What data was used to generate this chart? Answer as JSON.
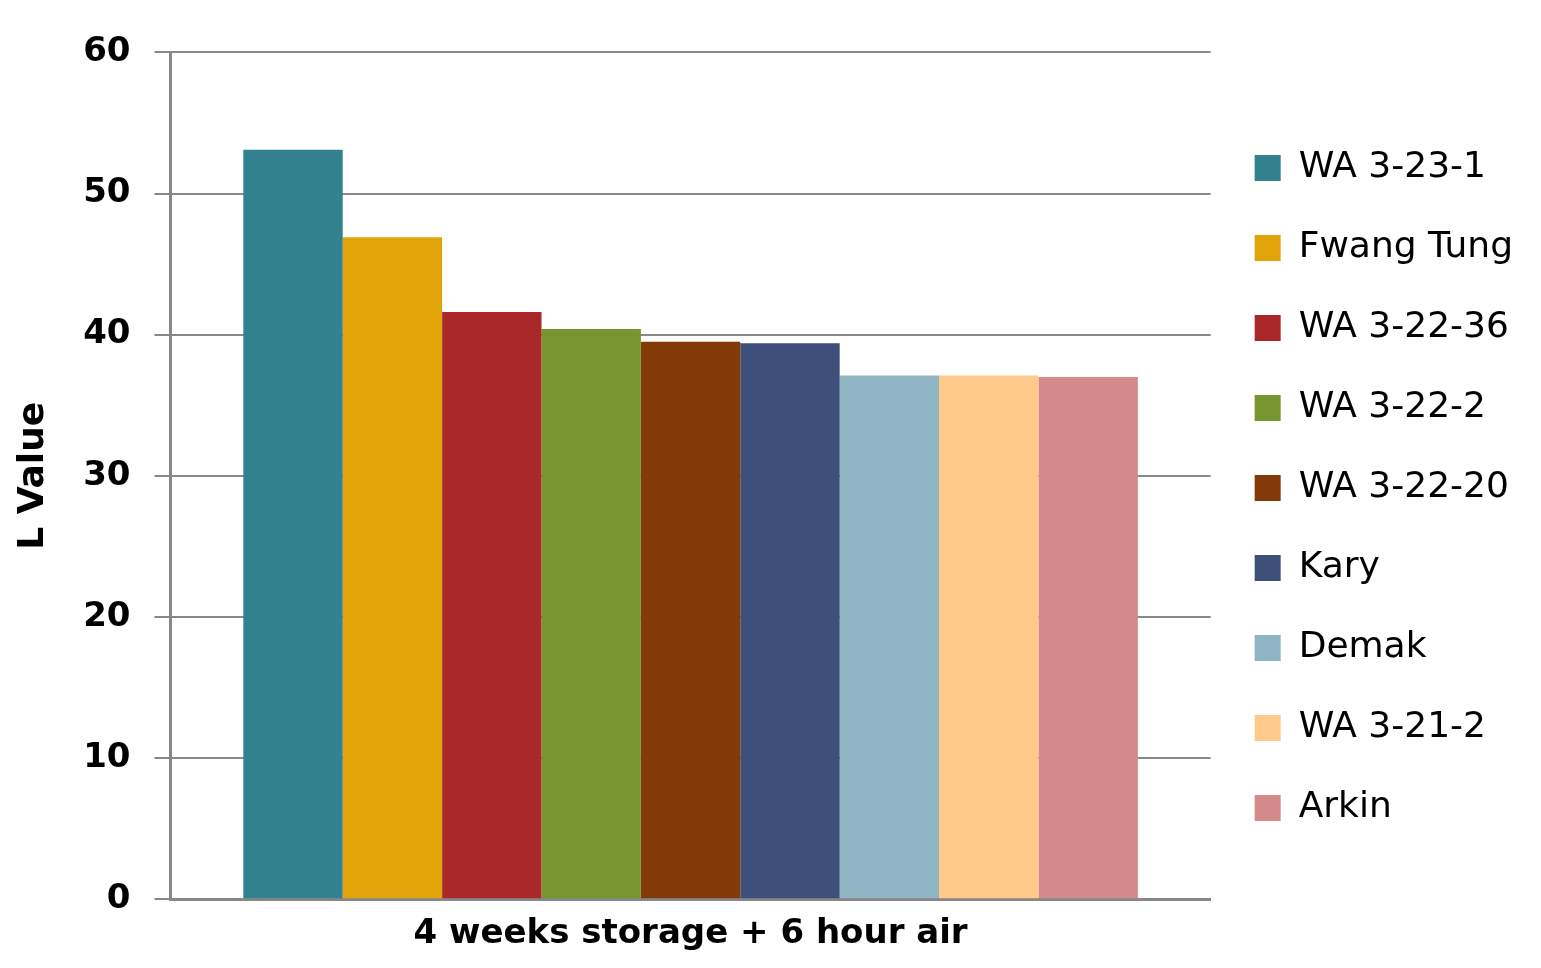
{
  "chart_data": {
    "type": "bar",
    "ylabel": "L Value",
    "categories": [
      "4 weeks storage + 6 hour air"
    ],
    "series": [
      {
        "name": "WA 3-23-1",
        "color": "#31818f",
        "values": [
          53.1
        ]
      },
      {
        "name": "Fwang Tung",
        "color": "#e1a40b",
        "values": [
          46.9
        ]
      },
      {
        "name": "WA 3-22-36",
        "color": "#aa272a",
        "values": [
          41.6
        ]
      },
      {
        "name": "WA 3-22-2",
        "color": "#76972f",
        "values": [
          40.4
        ]
      },
      {
        "name": "WA 3-22-20",
        "color": "#823a09",
        "values": [
          39.5
        ]
      },
      {
        "name": "Kary",
        "color": "#3e4f79",
        "values": [
          39.4
        ]
      },
      {
        "name": "Demak",
        "color": "#8fb4c3",
        "values": [
          37.1
        ]
      },
      {
        "name": "WA 3-21-2",
        "color": "#fec989",
        "values": [
          37.1
        ]
      },
      {
        "name": "Arkin",
        "color": "#d4898a",
        "values": [
          37.0
        ]
      }
    ],
    "ylim": [
      0,
      60
    ],
    "yticks": [
      0,
      10,
      20,
      30,
      40,
      50,
      60
    ],
    "grid": "y",
    "legend": "right"
  }
}
